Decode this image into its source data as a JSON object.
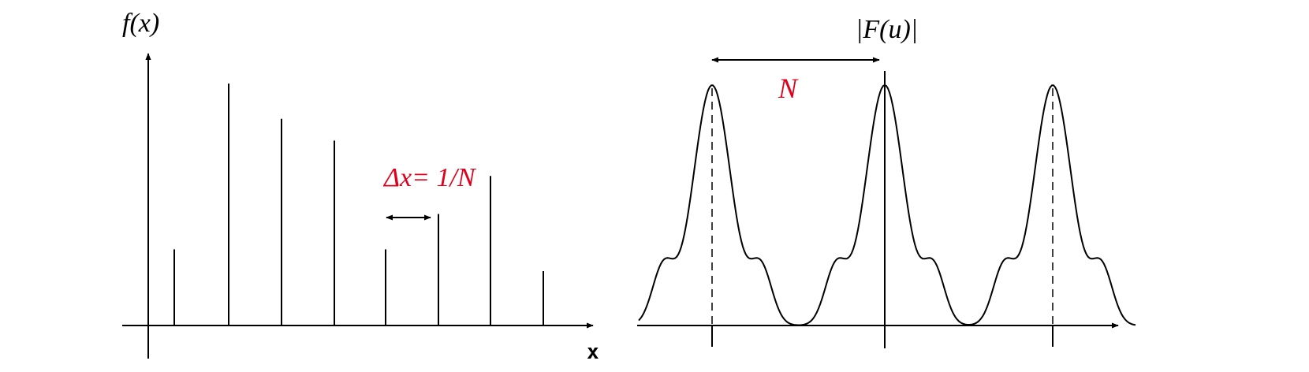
{
  "left_panel": {
    "y_label": "f(x)",
    "x_label": "x",
    "spacing_label": "Δx= 1/N",
    "samples": [
      0.28,
      0.89,
      0.76,
      0.68,
      0.28,
      0.41,
      0.55,
      0.2
    ]
  },
  "right_panel": {
    "y_label": "|F(u)|",
    "period_label": "N"
  },
  "colors": {
    "annotation": "#e0001b",
    "ink": "#000000"
  }
}
